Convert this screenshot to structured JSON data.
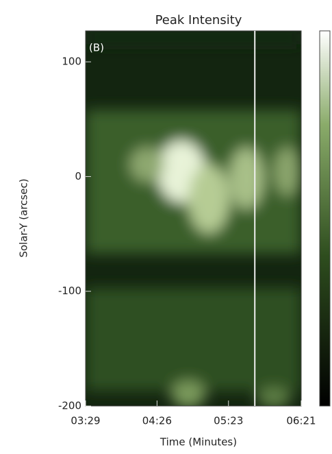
{
  "chart_data": {
    "type": "heatmap",
    "title": "Peak Intensity",
    "panel_label": "(B)",
    "xlabel": "Time (Minutes)",
    "ylabel": "Solar-Y (arcsec)",
    "xlim": [
      209,
      381
    ],
    "xticks": [
      {
        "value": 209,
        "label": "03:29"
      },
      {
        "value": 266,
        "label": "04:26"
      },
      {
        "value": 323,
        "label": "05:23"
      },
      {
        "value": 381,
        "label": "06:21"
      }
    ],
    "ylim": [
      -200,
      127
    ],
    "yticks": [
      -200,
      -100,
      0,
      100
    ],
    "marker_x": 344,
    "marker_color": "#f0f0f0"
  }
}
